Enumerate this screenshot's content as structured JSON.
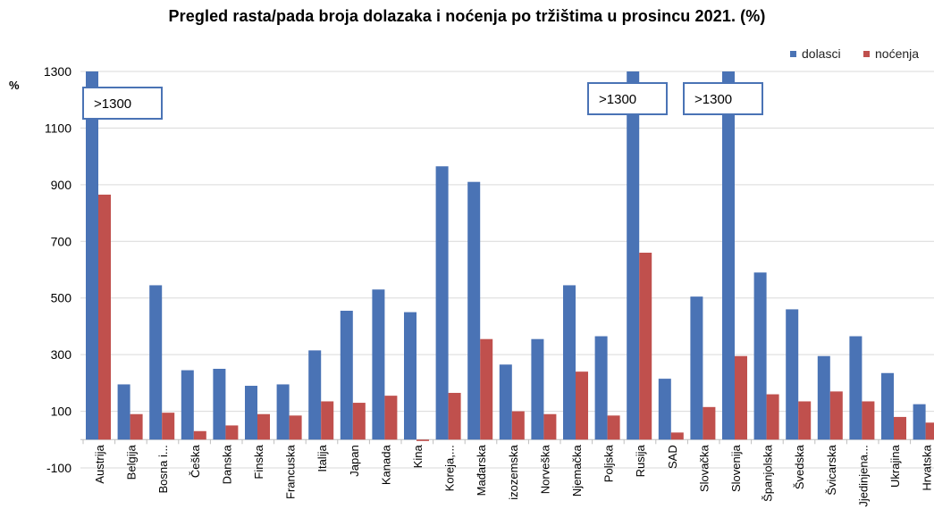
{
  "chart_data": {
    "type": "bar",
    "title": "Pregled rasta/pada broja dolazaka i noćenja po tržištima u prosincu 2021. (%)",
    "ylabel": "%",
    "ylim": [
      -100,
      1300
    ],
    "yticks": [
      -100,
      100,
      300,
      500,
      700,
      900,
      1100,
      1300
    ],
    "grid": true,
    "legend_position": "top-right",
    "colors": {
      "dolasci": "#4a73b5",
      "nocenja": "#c0504d",
      "callout": "#4a73b5"
    },
    "categories": [
      "Austrija",
      "Belgija",
      "Bosna i...",
      "Češka",
      "Danska",
      "Finska",
      "Francuska",
      "Italija",
      "Japan",
      "Kanada",
      "Kina",
      "Koreja,...",
      "Mađarska",
      "izozemska",
      "Norveška",
      "Njemačka",
      "Poljska",
      "Rusija",
      "SAD",
      "Slovačka",
      "Slovenija",
      "Španjolska",
      "Švedska",
      "Švicarska",
      "Jjedinjena...",
      "Ukrajina",
      "Hrvatska"
    ],
    "series": [
      {
        "name": "dolasci",
        "values": [
          1300,
          195,
          545,
          245,
          250,
          190,
          195,
          315,
          455,
          530,
          450,
          965,
          910,
          265,
          355,
          545,
          365,
          1300,
          215,
          505,
          1300,
          590,
          460,
          295,
          365,
          235,
          125
        ]
      },
      {
        "name": "noćenja",
        "values": [
          865,
          90,
          95,
          30,
          50,
          90,
          85,
          135,
          130,
          155,
          -5,
          165,
          355,
          100,
          90,
          240,
          85,
          660,
          25,
          115,
          295,
          160,
          135,
          170,
          135,
          80,
          60
        ]
      }
    ],
    "callouts": [
      {
        "category": "Austrija",
        "text": ">1300"
      },
      {
        "category": "Rusija",
        "text": ">1300"
      },
      {
        "category": "Slovenija",
        "text": ">1300"
      }
    ]
  }
}
